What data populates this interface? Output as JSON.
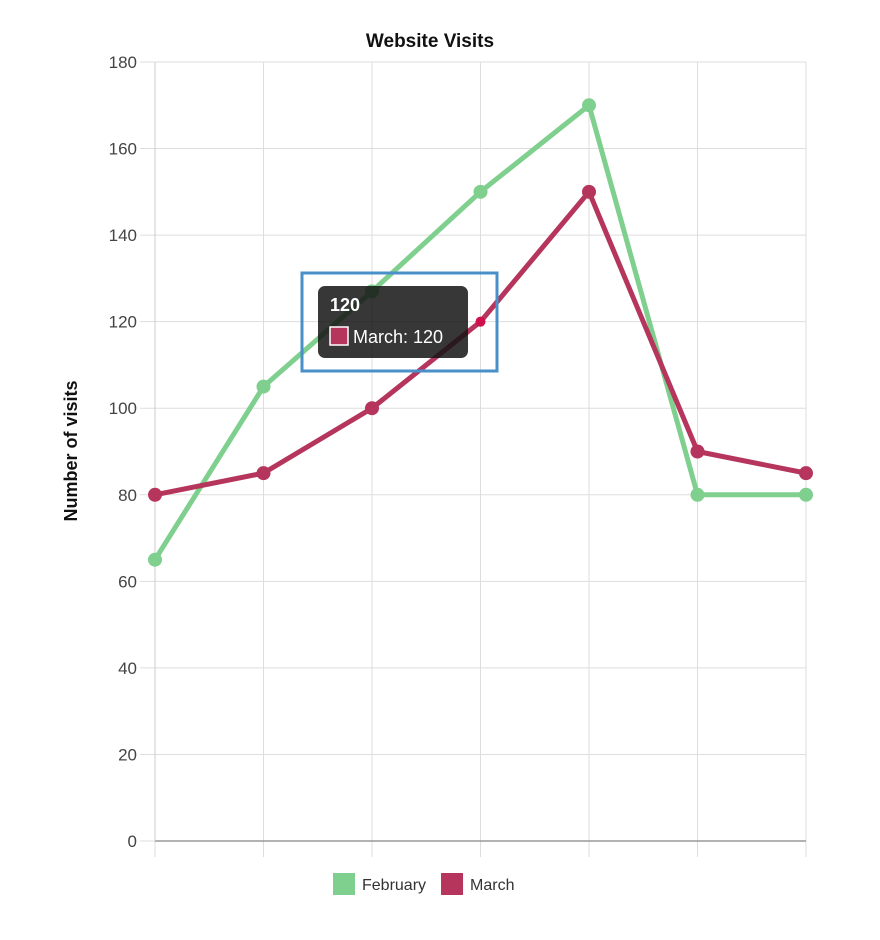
{
  "chart_data": {
    "type": "line",
    "title": "Website Visits",
    "xlabel": "",
    "ylabel": "Number of visits",
    "ylim": [
      0,
      180
    ],
    "yticks": [
      0,
      20,
      40,
      60,
      80,
      100,
      120,
      140,
      160,
      180
    ],
    "categories": [
      "",
      "",
      "",
      "",
      "",
      "",
      ""
    ],
    "grid": true,
    "legend_position": "bottom",
    "series": [
      {
        "name": "February",
        "color": "#7fcf8e",
        "values": [
          65,
          105,
          127,
          150,
          170,
          80,
          80
        ]
      },
      {
        "name": "March",
        "color": "#b5355c",
        "values": [
          80,
          85,
          100,
          120,
          150,
          90,
          85
        ]
      }
    ],
    "tooltip": {
      "title": "120",
      "label": "March: 120",
      "series_index": 1,
      "point_index": 3
    }
  }
}
